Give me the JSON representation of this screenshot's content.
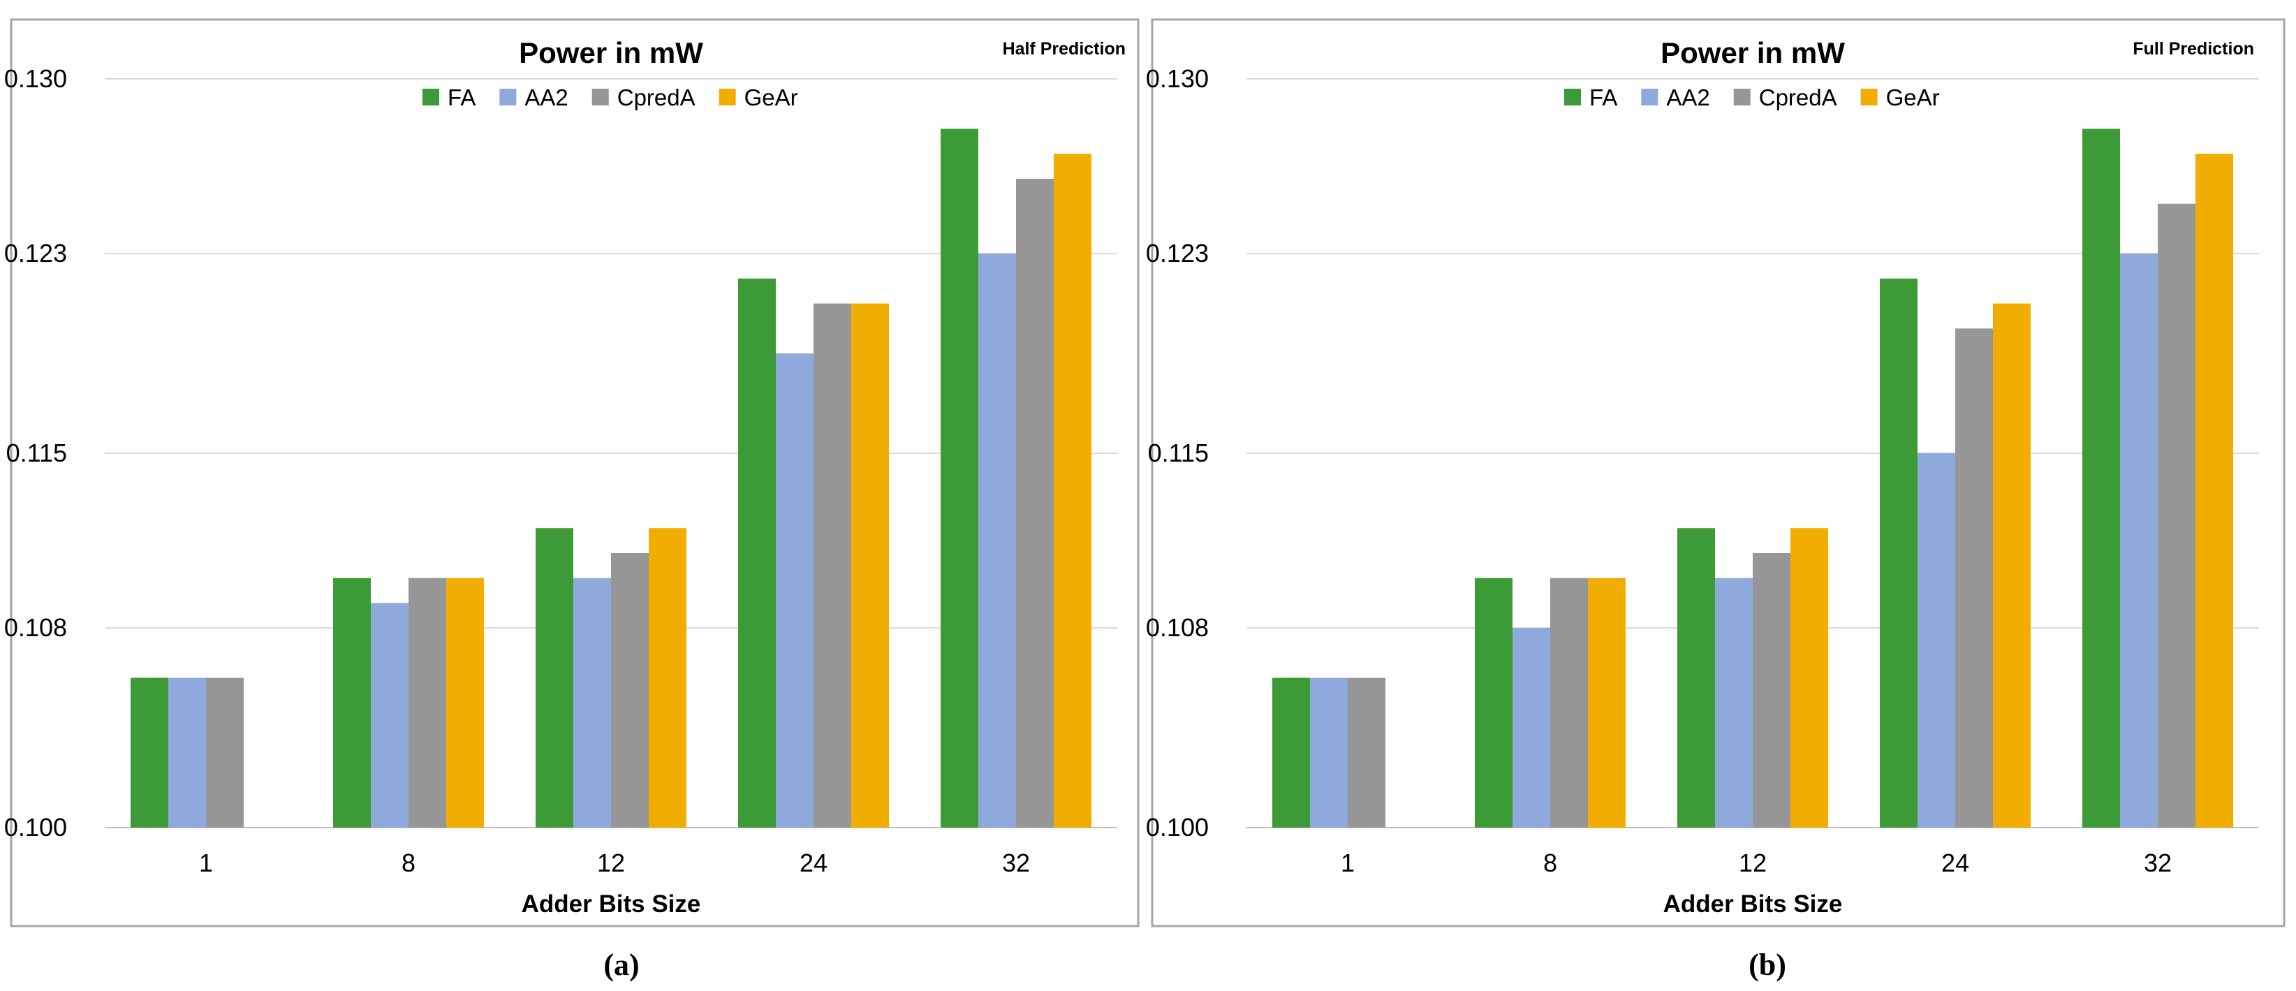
{
  "chart_data": [
    {
      "type": "bar",
      "title": "Power in  mW",
      "subtitle": "Half Prediction",
      "caption": "(a)",
      "xlabel": "Adder Bits Size",
      "ylabel": "",
      "ylim": [
        0.1,
        0.13
      ],
      "yticks": [
        "0.100",
        "0.108",
        "0.115",
        "0.123",
        "0.130"
      ],
      "grid": true,
      "legend_position": "top-center",
      "categories": [
        "1",
        "8",
        "12",
        "24",
        "32"
      ],
      "series": [
        {
          "name": "FA",
          "color": "#3C9A37",
          "values": [
            0.106,
            0.11,
            0.112,
            0.122,
            0.128
          ]
        },
        {
          "name": "AA2",
          "color": "#8EA9DB",
          "values": [
            0.106,
            0.109,
            0.11,
            0.119,
            0.123
          ]
        },
        {
          "name": "CpredA",
          "color": "#969696",
          "values": [
            0.106,
            0.11,
            0.111,
            0.121,
            0.126
          ]
        },
        {
          "name": "GeAr",
          "color": "#F2AE00",
          "values": [
            null,
            0.11,
            0.112,
            0.121,
            0.127
          ]
        }
      ]
    },
    {
      "type": "bar",
      "title": "Power in  mW",
      "subtitle": "Full Prediction",
      "caption": "(b)",
      "xlabel": "Adder Bits Size",
      "ylabel": "",
      "ylim": [
        0.1,
        0.13
      ],
      "yticks": [
        "0.100",
        "0.108",
        "0.115",
        "0.123",
        "0.130"
      ],
      "grid": true,
      "legend_position": "top-center",
      "categories": [
        "1",
        "8",
        "12",
        "24",
        "32"
      ],
      "series": [
        {
          "name": "FA",
          "color": "#3C9A37",
          "values": [
            0.106,
            0.11,
            0.112,
            0.122,
            0.128
          ]
        },
        {
          "name": "AA2",
          "color": "#8EA9DB",
          "values": [
            0.106,
            0.108,
            0.11,
            0.115,
            0.123
          ]
        },
        {
          "name": "CpredA",
          "color": "#969696",
          "values": [
            0.106,
            0.11,
            0.111,
            0.12,
            0.125
          ]
        },
        {
          "name": "GeAr",
          "color": "#F2AE00",
          "values": [
            null,
            0.11,
            0.112,
            0.121,
            0.127
          ]
        }
      ]
    }
  ]
}
